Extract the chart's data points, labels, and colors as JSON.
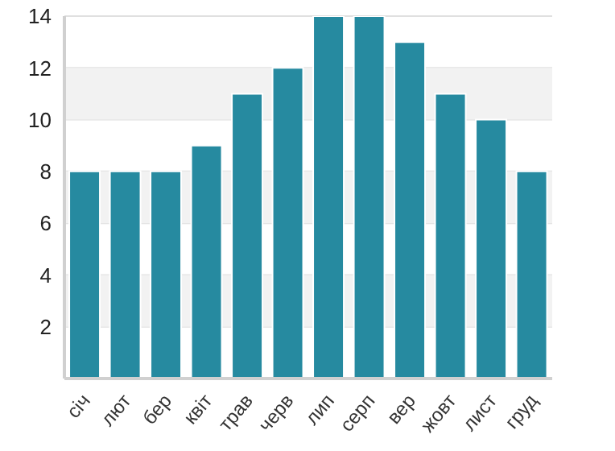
{
  "chart_data": {
    "type": "bar",
    "categories": [
      "січ",
      "лют",
      "бер",
      "квіт",
      "трав",
      "черв",
      "лип",
      "серп",
      "вер",
      "жовт",
      "лист",
      "груд"
    ],
    "values": [
      8,
      8,
      8,
      9,
      11,
      12,
      14,
      14,
      13,
      11,
      10,
      8
    ],
    "color": "#268aa0",
    "ylim": [
      0,
      14
    ],
    "yticks": [
      2,
      4,
      6,
      8,
      10,
      12,
      14
    ],
    "grid": "y",
    "bands": [
      {
        "axis": "y",
        "from": 2,
        "to": 4,
        "color": "#f2f2f2"
      },
      {
        "axis": "y",
        "from": 6,
        "to": 8,
        "color": "#f2f2f2"
      },
      {
        "axis": "y",
        "from": 10,
        "to": 12,
        "color": "#f2f2f2"
      }
    ]
  }
}
